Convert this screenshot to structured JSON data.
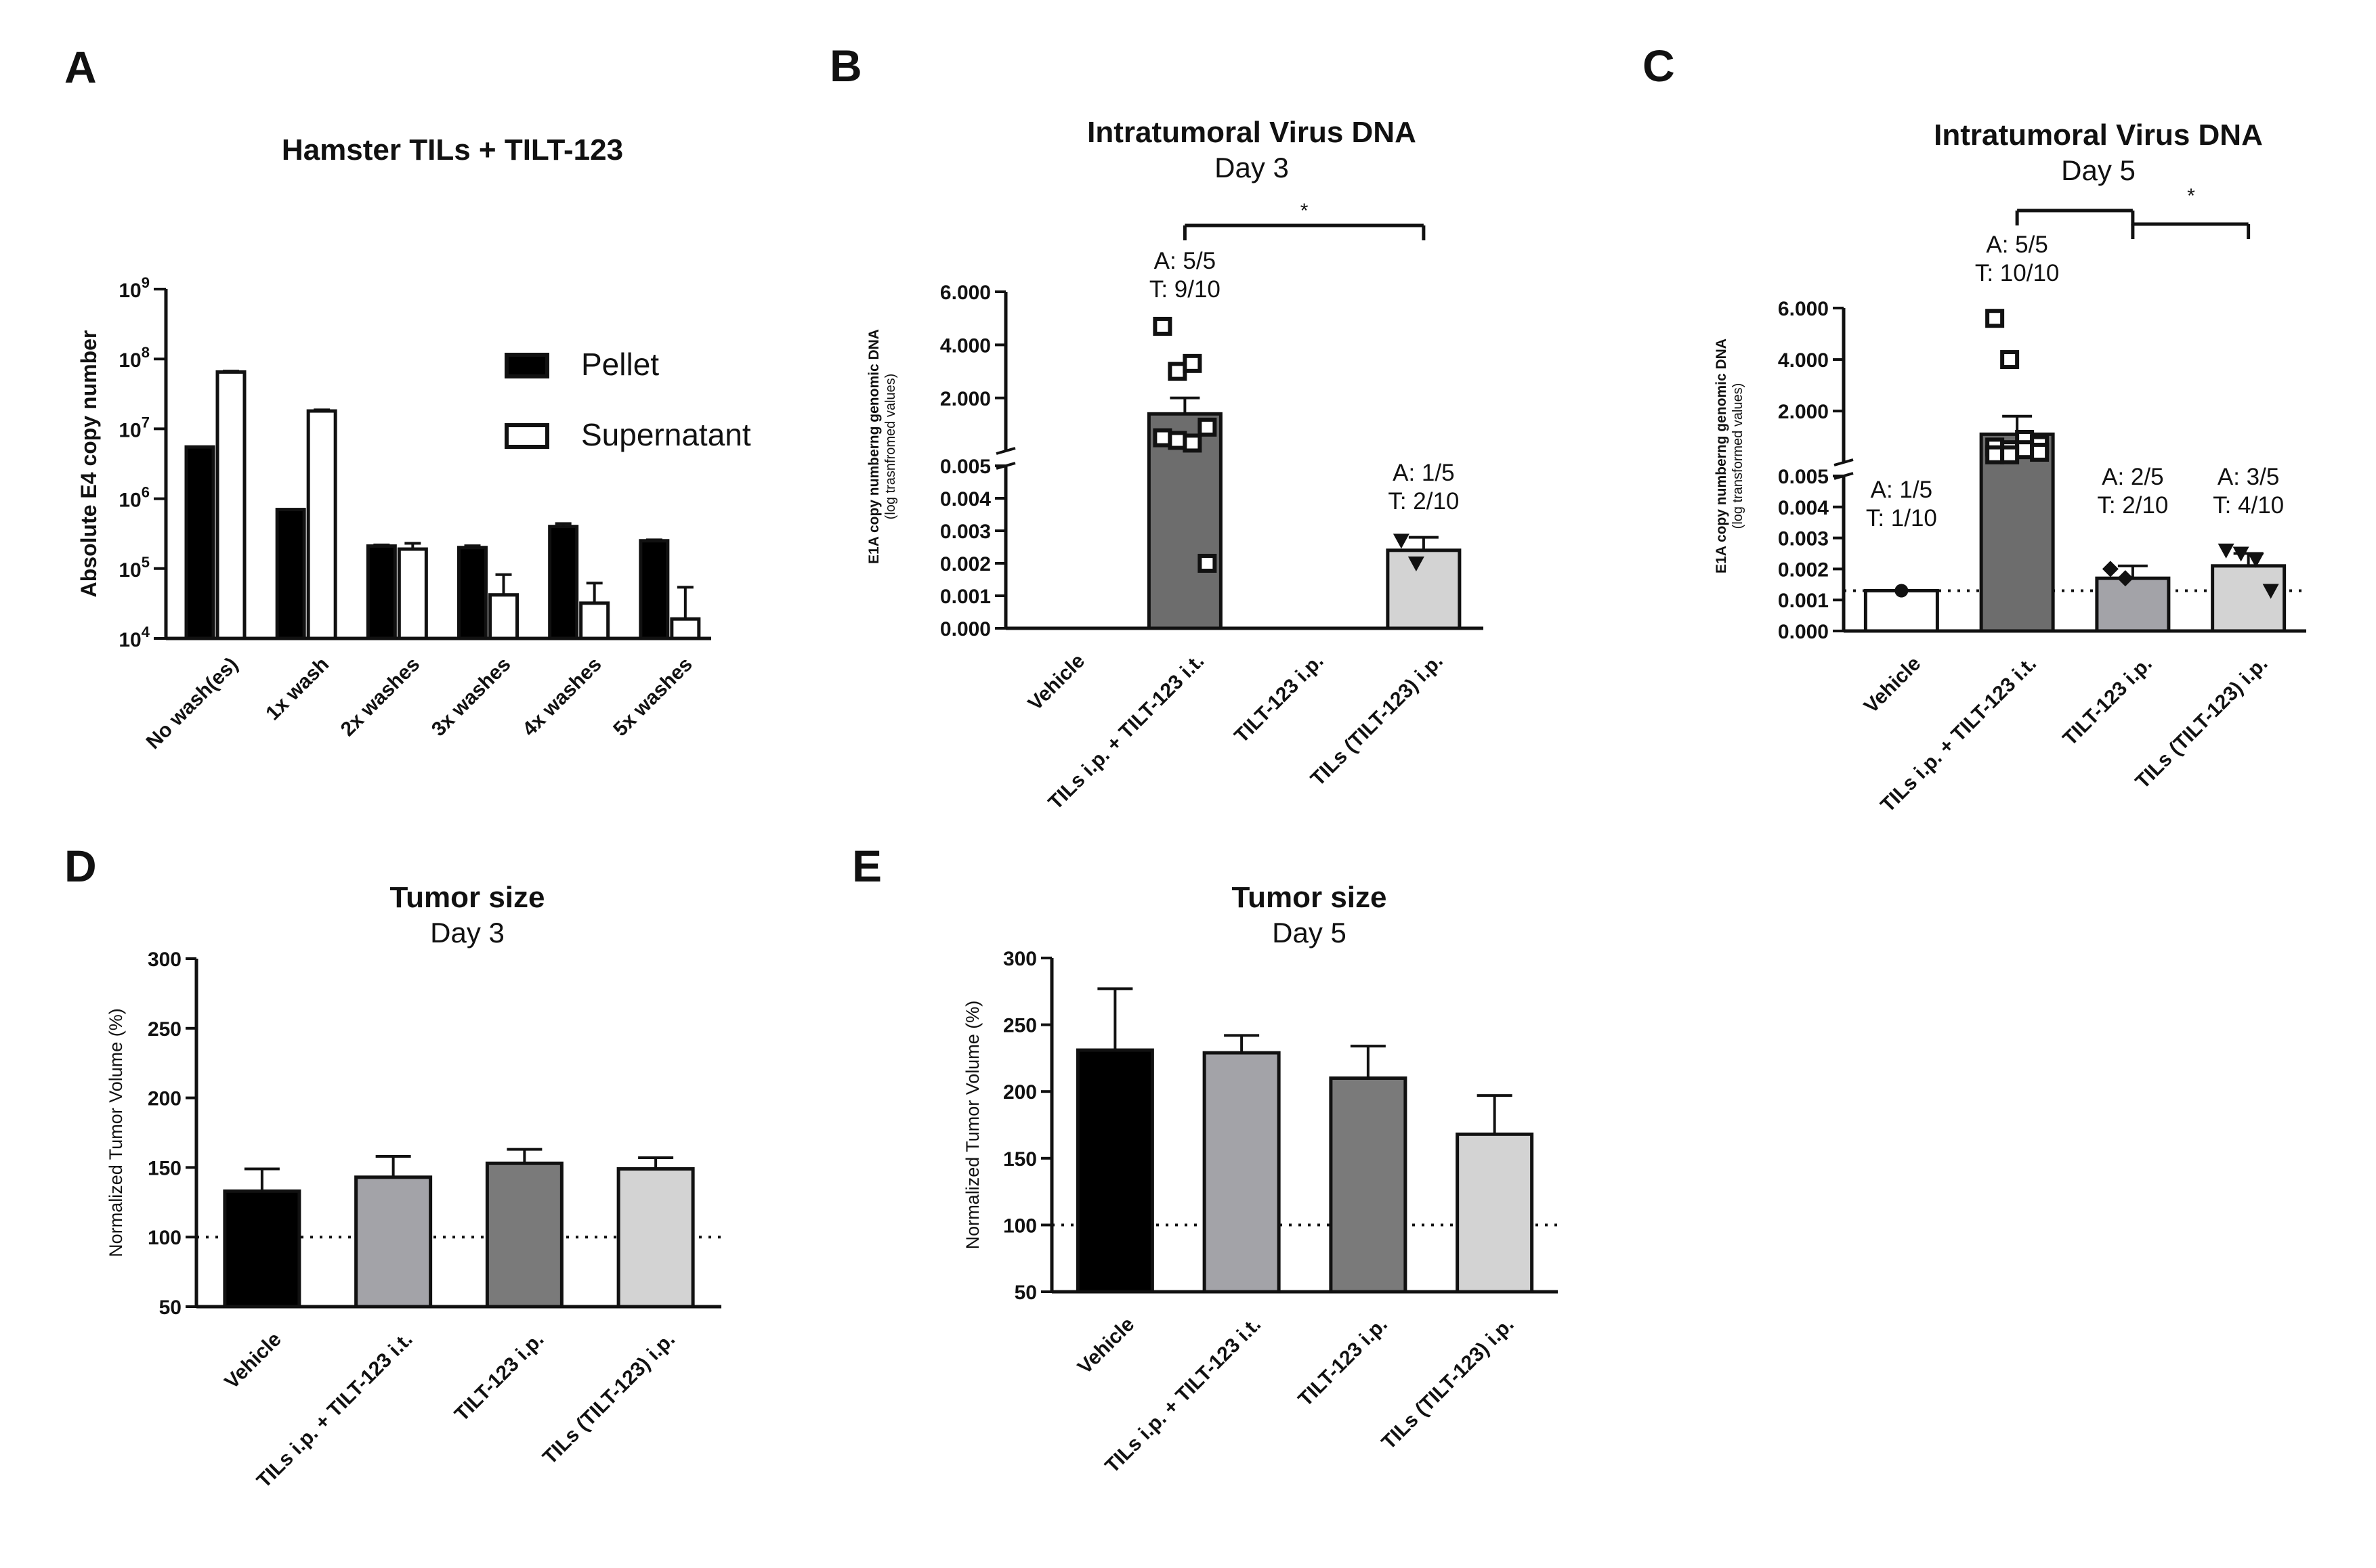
{
  "panels": {
    "A": {
      "letter": "A",
      "chart_data": {
        "type": "bar",
        "title": "Hamster TILs + TILT-123",
        "ylabel": "Absolute E4 copy number",
        "yscale": "log",
        "ylim": [
          10000,
          1000000000
        ],
        "yticks": [
          {
            "value": 10000,
            "base": "10",
            "exp": "4"
          },
          {
            "value": 100000,
            "base": "10",
            "exp": "5"
          },
          {
            "value": 1000000,
            "base": "10",
            "exp": "6"
          },
          {
            "value": 10000000,
            "base": "10",
            "exp": "7"
          },
          {
            "value": 100000000,
            "base": "10",
            "exp": "8"
          },
          {
            "value": 1000000000,
            "base": "10",
            "exp": "9"
          }
        ],
        "categories": [
          "No wash(es)",
          "1x wash",
          "2x washes",
          "3x washes",
          "4x washes",
          "5x washes"
        ],
        "series": [
          {
            "name": "Pellet",
            "fill": "#000000",
            "values": [
              5500000,
              700000,
              210000,
              200000,
              400000,
              250000
            ],
            "errors": [
              0,
              0,
              8000,
              12000,
              40000,
              8000
            ]
          },
          {
            "name": "Supernatant",
            "fill": "#ffffff",
            "values": [
              65000000,
              18000000,
              190000,
              42000,
              32000,
              19000
            ],
            "errors": [
              2000000,
              700000,
              40000,
              40000,
              30000,
              35000
            ]
          }
        ],
        "legend": [
          "Pellet",
          "Supernatant"
        ]
      }
    },
    "B": {
      "letter": "B",
      "chart_data": {
        "type": "bar",
        "title": "Intratumoral Virus DNA",
        "subtitle": "Day 3",
        "ylabel": "E1A copy numberng genomic DNA",
        "ylabel_sub": "(log trasnfromed values)",
        "yaxis_segments": {
          "lower": {
            "range": [
              0,
              0.005
            ],
            "ticks": [
              "0.000",
              "0.001",
              "0.002",
              "0.003",
              "0.004",
              "0.005"
            ]
          },
          "upper": {
            "range": [
              0.005,
              6
            ],
            "ticks": [
              "2.000",
              "4.000",
              "6.000"
            ]
          }
        },
        "categories": [
          "Vehicle",
          "TILs i.p. + TILT-123 i.t.",
          "TILT-123 i.p.",
          "TILs (TILT-123) i.p."
        ],
        "values": [
          0,
          1.4,
          0,
          0.0024
        ],
        "errors": [
          0,
          0.6,
          0,
          0.0004
        ],
        "fills": [
          "#ffffff",
          "#6d6d6d",
          "#ffffff",
          "#d3d3d3"
        ],
        "points": [
          [],
          [
            4.7,
            3.0,
            3.3,
            0.9,
            0.5,
            0.4,
            0.3,
            0.002
          ],
          [],
          [
            0.0027,
            0.002
          ]
        ],
        "point_markers": [
          "square",
          "square",
          "square",
          "triangle"
        ],
        "annotations": [
          {
            "category": 1,
            "lines": [
              "A: 5/5",
              "T: 9/10"
            ]
          },
          {
            "category": 3,
            "lines": [
              "A: 1/5",
              "T: 2/10"
            ]
          }
        ],
        "significance": [
          {
            "from": 1,
            "to": 3,
            "label": "*"
          }
        ]
      }
    },
    "C": {
      "letter": "C",
      "chart_data": {
        "type": "bar",
        "title": "Intratumoral Virus DNA",
        "subtitle": "Day 5",
        "ylabel": "E1A copy numberng genomic DNA",
        "ylabel_sub": "(log transformed values)",
        "yaxis_segments": {
          "lower": {
            "range": [
              0,
              0.005
            ],
            "ticks": [
              "0.000",
              "0.001",
              "0.002",
              "0.003",
              "0.004",
              "0.005"
            ]
          },
          "upper": {
            "range": [
              0.005,
              6
            ],
            "ticks": [
              "2.000",
              "4.000",
              "6.000"
            ]
          }
        },
        "reference_line": 0.0013,
        "categories": [
          "Vehicle",
          "TILs i.p. + TILT-123 i.t.",
          "TILT-123 i.p.",
          "TILs (TILT-123) i.p."
        ],
        "values": [
          0.0013,
          1.1,
          0.0017,
          0.0021
        ],
        "errors": [
          0,
          0.7,
          0.0004,
          0.0004
        ],
        "fills": [
          "#ffffff",
          "#6d6d6d",
          "#a3a3a8",
          "#d3d3d3"
        ],
        "points": [
          [
            0.0013
          ],
          [
            5.6,
            4.0,
            0.9,
            0.7,
            0.6,
            0.5,
            0.5,
            0.4,
            0.3,
            0.3
          ],
          [
            0.002,
            0.0017
          ],
          [
            0.0026,
            0.0025,
            0.0023,
            0.0013
          ]
        ],
        "point_markers": [
          "circle",
          "square",
          "diamond",
          "triangle"
        ],
        "annotations": [
          {
            "category": 0,
            "lines": [
              "A: 1/5",
              "T: 1/10"
            ]
          },
          {
            "category": 1,
            "lines": [
              "A: 5/5",
              "T: 10/10"
            ]
          },
          {
            "category": 2,
            "lines": [
              "A: 2/5",
              "T: 2/10"
            ]
          },
          {
            "category": 3,
            "lines": [
              "A: 3/5",
              "T: 4/10"
            ]
          }
        ],
        "significance": [
          {
            "from": 1,
            "to": 2,
            "label": ""
          },
          {
            "from": 2,
            "to": 3,
            "label": ""
          }
        ],
        "significance_star": "*"
      }
    },
    "D": {
      "letter": "D",
      "chart_data": {
        "type": "bar",
        "title": "Tumor size",
        "subtitle": "Day 3",
        "ylabel": "Normalized Tumor Volume (%)",
        "ylim": [
          50,
          300
        ],
        "yticks": [
          50,
          100,
          150,
          200,
          250,
          300
        ],
        "reference_line": 100,
        "categories": [
          "Vehicle",
          "TILs i.p. + TILT-123 i.t.",
          "TILT-123 i.p.",
          "TILs (TILT-123) i.p."
        ],
        "values": [
          133,
          143,
          153,
          149
        ],
        "errors": [
          16,
          15,
          10,
          8
        ],
        "fills": [
          "#000000",
          "#a3a3a8",
          "#7a7a7a",
          "#d3d3d3"
        ]
      }
    },
    "E": {
      "letter": "E",
      "chart_data": {
        "type": "bar",
        "title": "Tumor size",
        "subtitle": "Day 5",
        "ylabel": "Normalized Tumor Volume (%)",
        "ylim": [
          50,
          300
        ],
        "yticks": [
          50,
          100,
          150,
          200,
          250,
          300
        ],
        "reference_line": 100,
        "categories": [
          "Vehicle",
          "TILs i.p. + TILT-123 i.t.",
          "TILT-123 i.p.",
          "TILs (TILT-123) i.p."
        ],
        "values": [
          231,
          229,
          210,
          168
        ],
        "errors": [
          46,
          13,
          24,
          29
        ],
        "fills": [
          "#000000",
          "#a3a3a8",
          "#7a7a7a",
          "#d3d3d3"
        ]
      }
    }
  }
}
